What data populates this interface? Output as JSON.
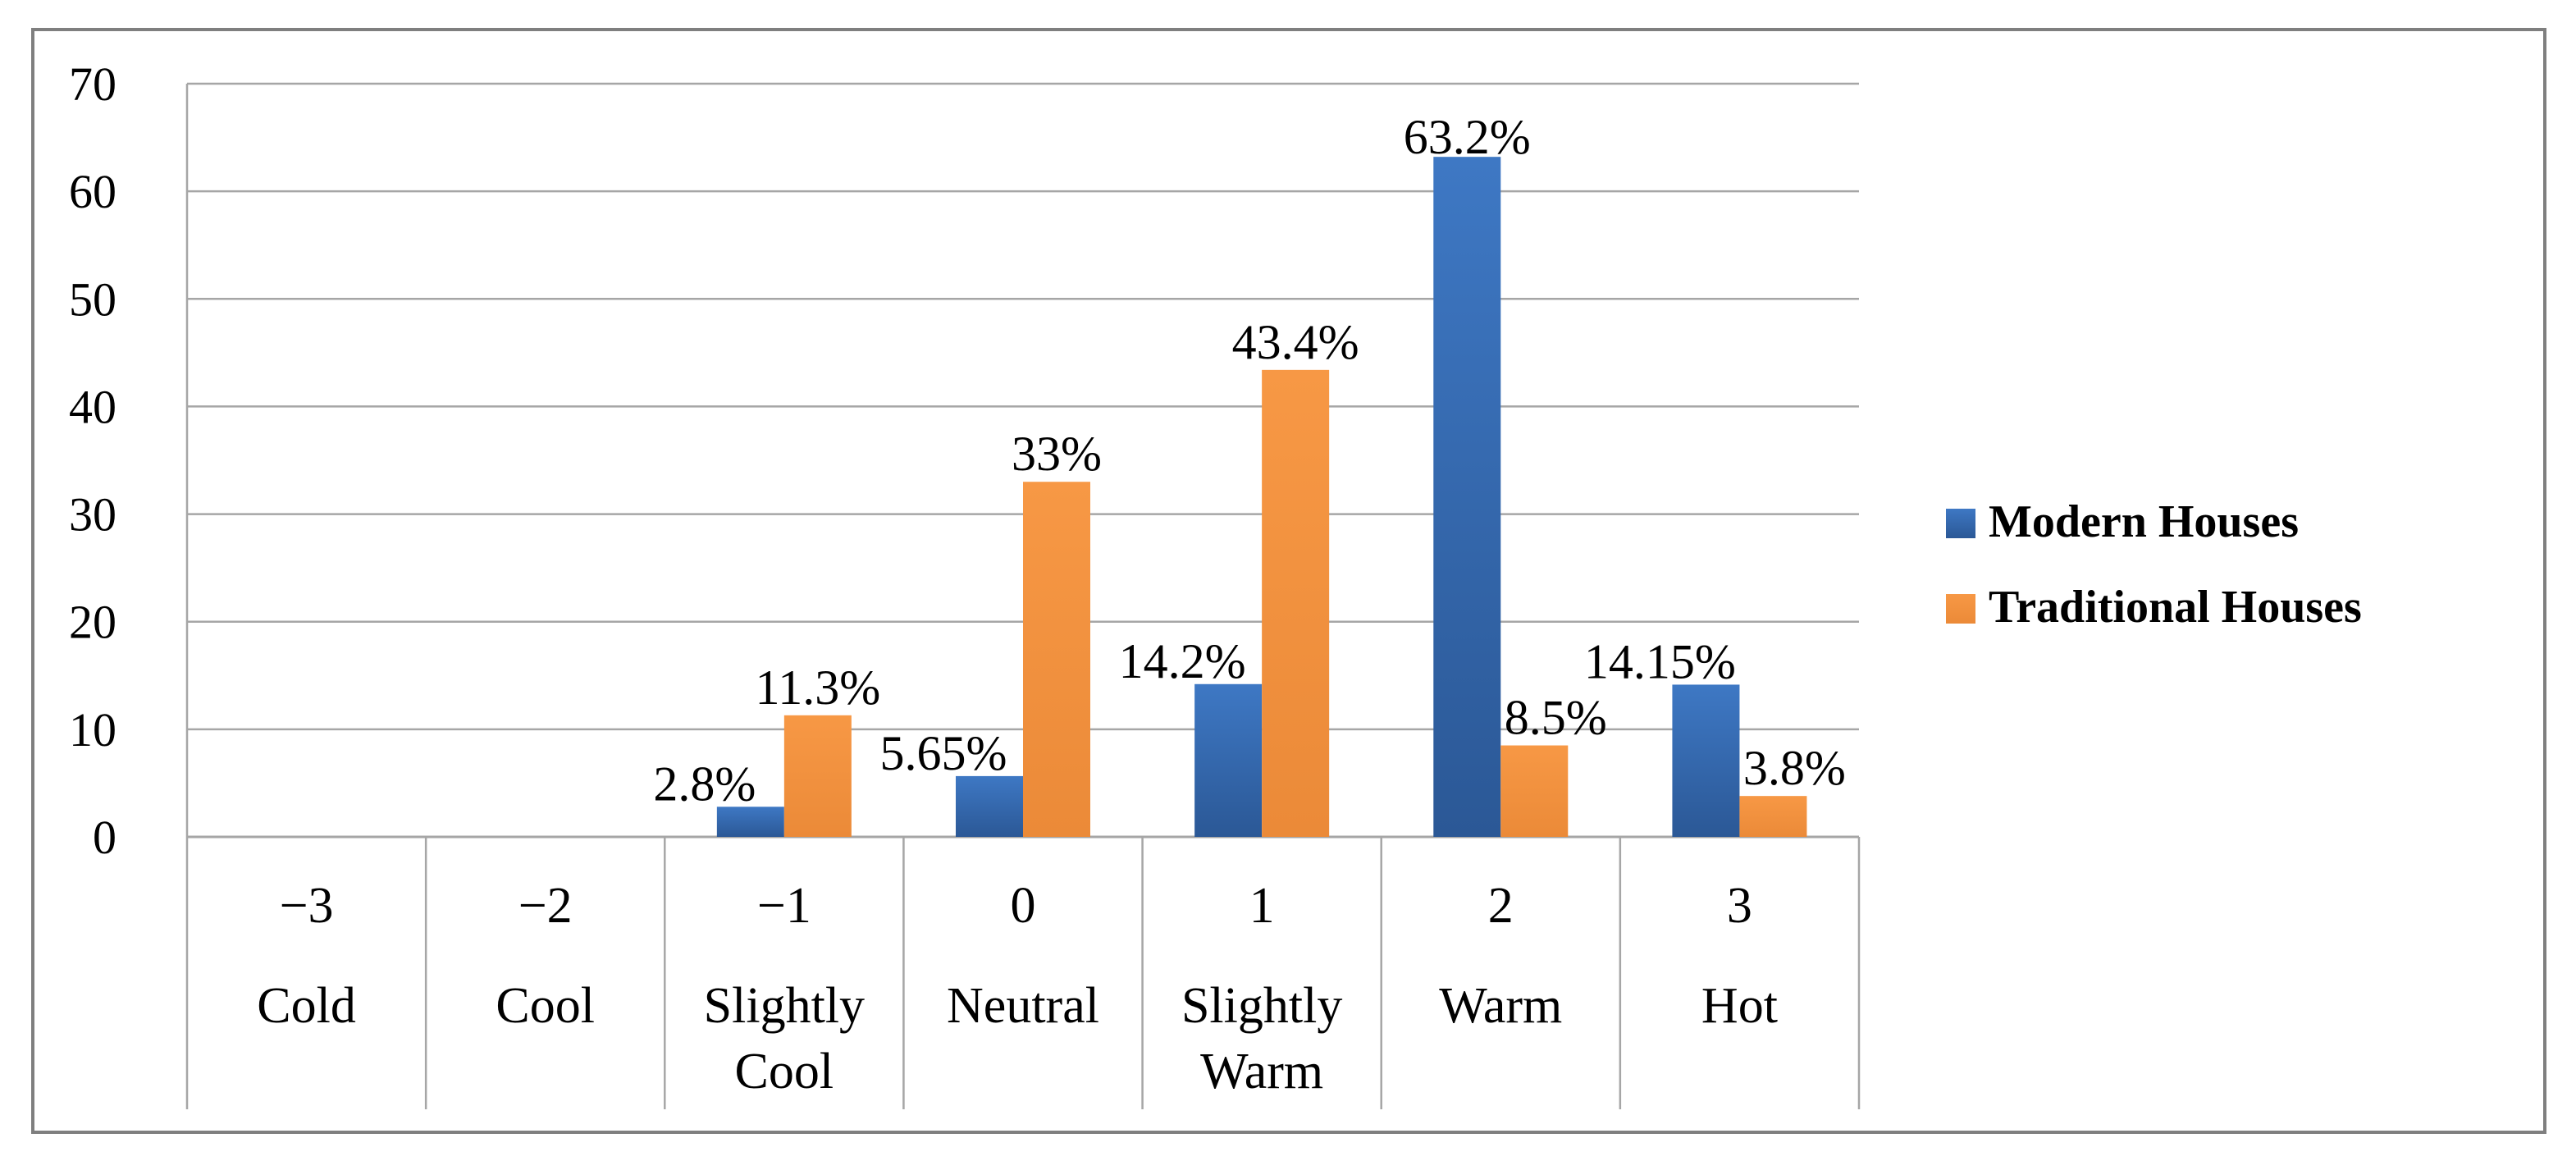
{
  "colors": {
    "modern": "#3E78C4",
    "modern_dark": "#2B5896",
    "traditional": "#F79845",
    "traditional_dark": "#EB8A38",
    "grid": "#A6A6A6",
    "frame": "#7F7F7F"
  },
  "chart_data": {
    "type": "bar",
    "title": "",
    "xlabel": "",
    "ylabel": "",
    "ylim": [
      0,
      70
    ],
    "yticks": [
      0,
      10,
      20,
      30,
      40,
      50,
      60,
      70
    ],
    "grid": true,
    "legend_position": "right",
    "categories": [
      {
        "code": "−3",
        "name_lines": [
          "Cold"
        ]
      },
      {
        "code": "−2",
        "name_lines": [
          "Cool"
        ]
      },
      {
        "code": "−1",
        "name_lines": [
          "Slightly",
          "Cool"
        ]
      },
      {
        "code": "0",
        "name_lines": [
          "Neutral"
        ]
      },
      {
        "code": "1",
        "name_lines": [
          "Slightly",
          "Warm"
        ]
      },
      {
        "code": "2",
        "name_lines": [
          "Warm"
        ]
      },
      {
        "code": "3",
        "name_lines": [
          "Hot"
        ]
      }
    ],
    "series": [
      {
        "name": "Modern Houses",
        "color_key": "modern",
        "values": [
          null,
          null,
          2.8,
          5.65,
          14.2,
          63.2,
          14.15
        ],
        "labels": [
          null,
          null,
          "2.8%",
          "5.65%",
          "14.2%",
          "63.2%",
          "14.15%"
        ]
      },
      {
        "name": "Traditional Houses",
        "color_key": "traditional",
        "values": [
          null,
          null,
          11.3,
          33,
          43.4,
          8.5,
          3.8
        ],
        "labels": [
          null,
          null,
          "11.3%",
          "33%",
          "43.4%",
          "8.5%",
          "3.8%"
        ]
      }
    ]
  }
}
